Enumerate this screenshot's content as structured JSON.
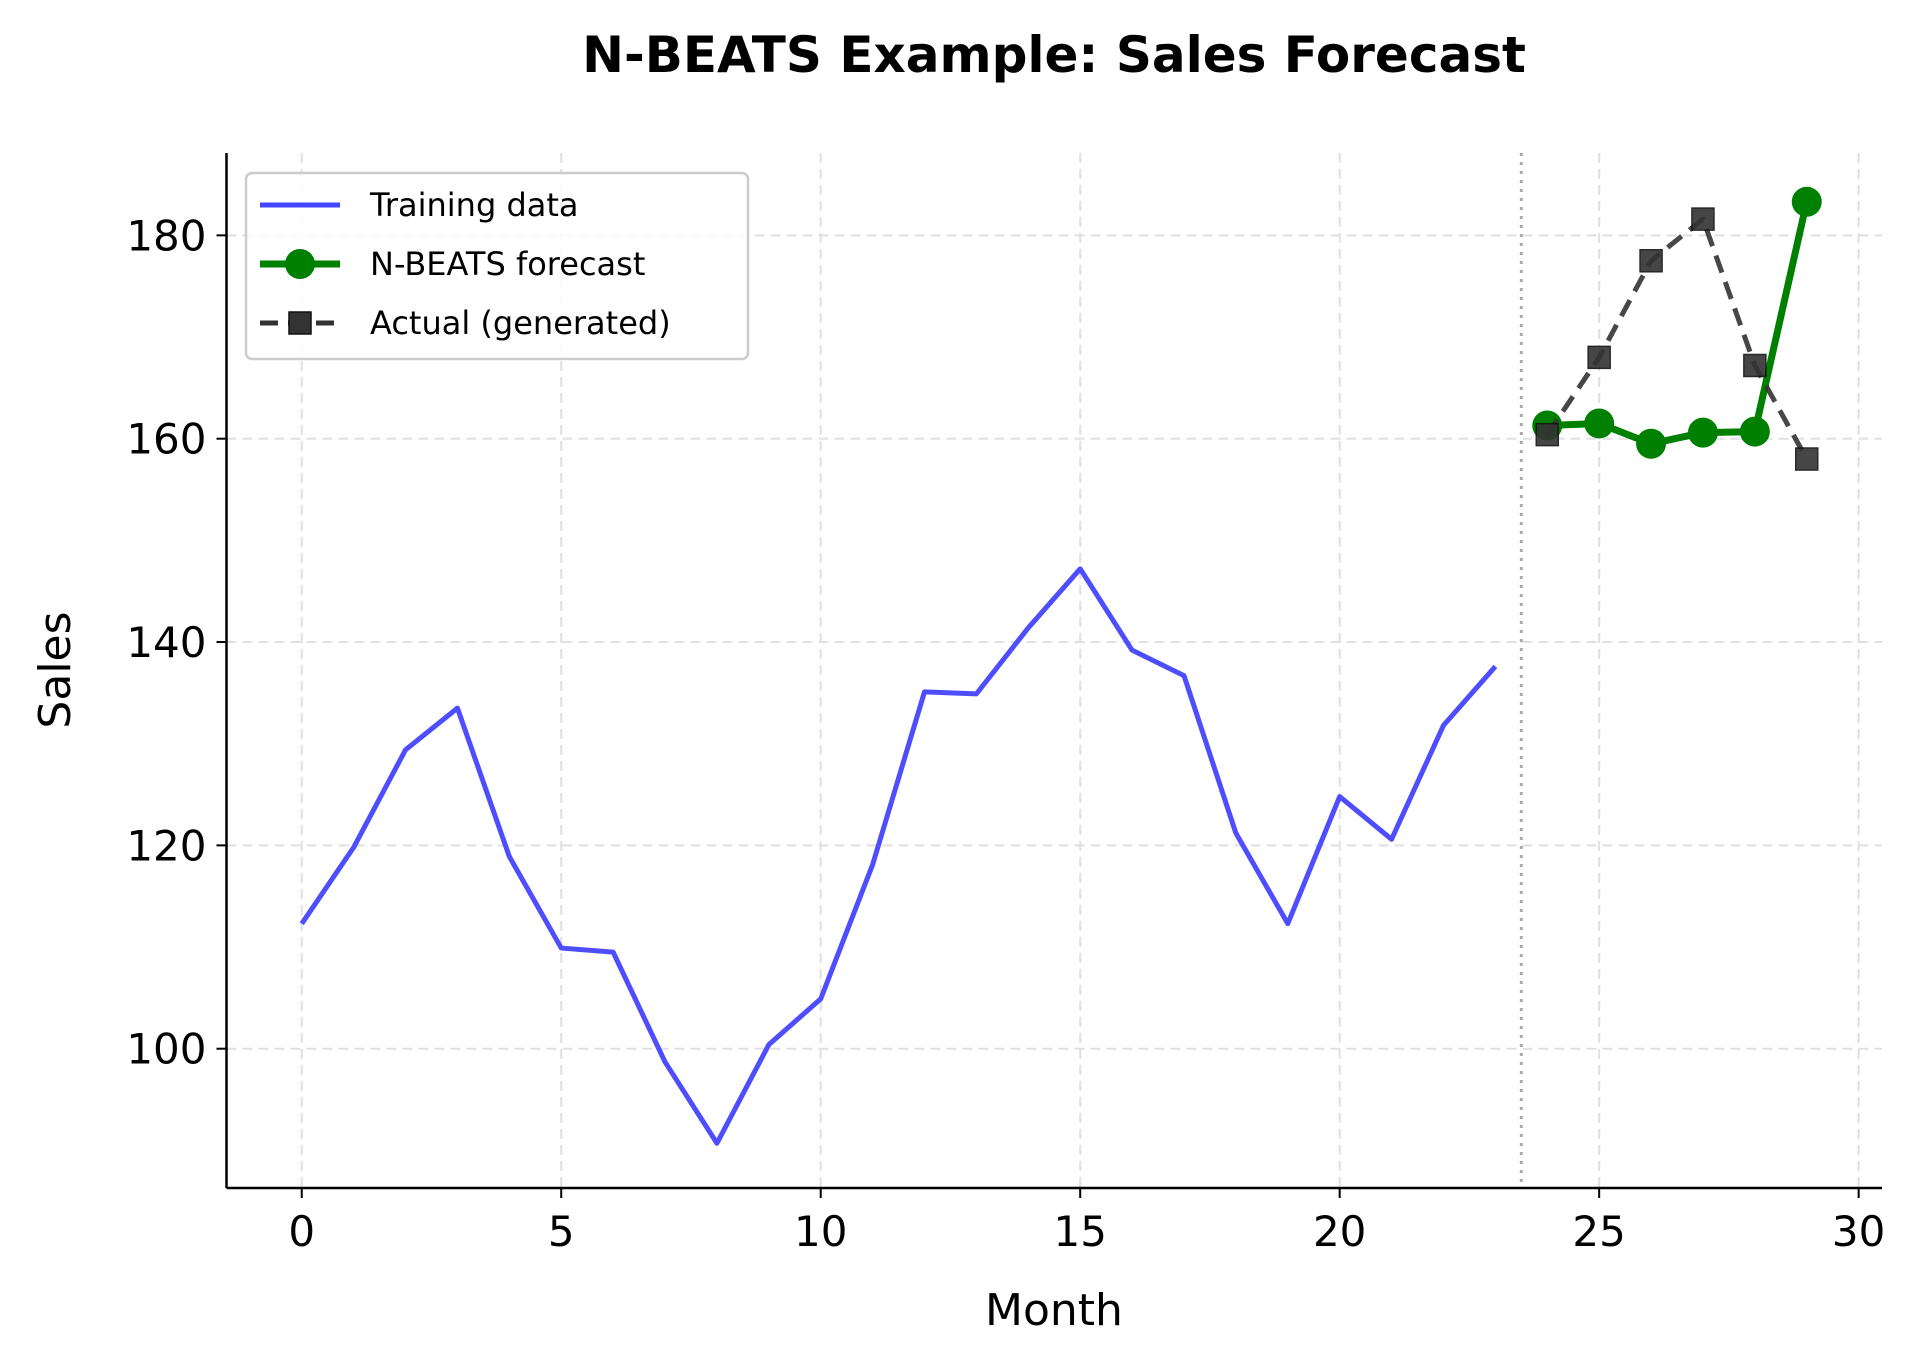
{
  "chart_data": {
    "type": "line",
    "title": "N-BEATS Example: Sales Forecast",
    "xlabel": "Month",
    "ylabel": "Sales",
    "xlim": [
      -1.45,
      30.45
    ],
    "ylim": [
      86.3,
      188.1
    ],
    "xticks": [
      0,
      5,
      10,
      15,
      20,
      25,
      30
    ],
    "yticks": [
      100,
      120,
      140,
      160,
      180
    ],
    "grid": true,
    "legend_position": "upper-left",
    "split_line_x": 23.5,
    "series": [
      {
        "name": "Training data",
        "color": "#4444ff",
        "style": "solid",
        "marker": "none",
        "x": [
          0,
          1,
          2,
          3,
          4,
          5,
          6,
          7,
          8,
          9,
          10,
          11,
          12,
          13,
          14,
          15,
          16,
          17,
          18,
          19,
          20,
          21,
          22,
          23
        ],
        "y": [
          112.3,
          119.8,
          129.4,
          133.5,
          118.9,
          109.9,
          109.5,
          98.7,
          90.7,
          100.4,
          104.9,
          118.1,
          135.1,
          134.9,
          141.4,
          147.2,
          139.2,
          136.7,
          121.2,
          112.3,
          124.8,
          120.6,
          131.8,
          137.6
        ]
      },
      {
        "name": "N-BEATS forecast",
        "color": "#008000",
        "style": "solid",
        "marker": "circle",
        "x": [
          24,
          25,
          26,
          27,
          28,
          29
        ],
        "y": [
          161.3,
          161.5,
          159.5,
          160.6,
          160.7,
          183.3
        ]
      },
      {
        "name": "Actual (generated)",
        "color": "#333333",
        "style": "dashed",
        "marker": "square",
        "x": [
          24,
          25,
          26,
          27,
          28,
          29
        ],
        "y": [
          160.4,
          168.0,
          177.5,
          181.6,
          167.2,
          158.0
        ]
      }
    ]
  }
}
